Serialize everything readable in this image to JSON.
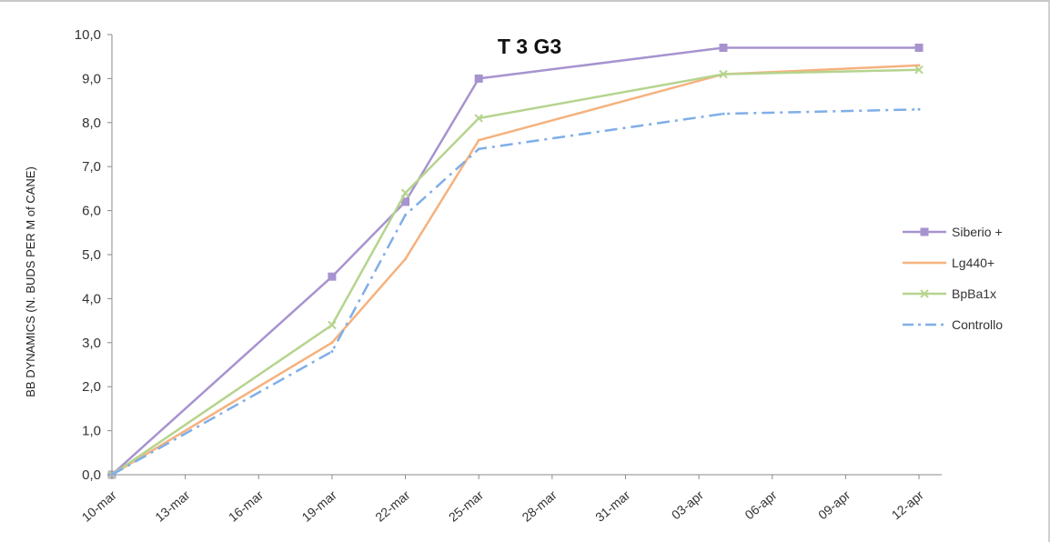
{
  "chart_data": {
    "type": "line",
    "title": "T 3 G3",
    "xlabel": "",
    "ylabel": "BB DYNAMICS (N. BUDS PER M of CANE)",
    "x_tick_labels": [
      "10-mar",
      "13-mar",
      "16-mar",
      "19-mar",
      "22-mar",
      "25-mar",
      "28-mar",
      "31-mar",
      "03-apr",
      "06-apr",
      "09-apr",
      "12-apr"
    ],
    "xlim": [
      "10-mar",
      "12-apr"
    ],
    "y_tick_labels": [
      "0,0",
      "1,0",
      "2,0",
      "3,0",
      "4,0",
      "5,0",
      "6,0",
      "7,0",
      "8,0",
      "9,0",
      "10,0"
    ],
    "ylim": [
      0,
      10
    ],
    "grid": false,
    "legend_position": "right",
    "series": [
      {
        "name": "Siberio +",
        "color": "#a793cf",
        "dash": "solid",
        "marker": "square",
        "x": [
          "10-mar",
          "19-mar",
          "22-mar",
          "25-mar",
          "04-apr",
          "12-apr"
        ],
        "y": [
          0.0,
          4.5,
          6.2,
          9.0,
          9.7,
          9.7
        ]
      },
      {
        "name": "Lg440+",
        "color": "#f5b27e",
        "dash": "solid",
        "marker": "none",
        "x": [
          "10-mar",
          "19-mar",
          "22-mar",
          "25-mar",
          "04-apr",
          "12-apr"
        ],
        "y": [
          0.0,
          3.0,
          4.9,
          7.6,
          9.1,
          9.3
        ]
      },
      {
        "name": "BpBa1x",
        "color": "#b5d48e",
        "dash": "solid",
        "marker": "x",
        "x": [
          "10-mar",
          "19-mar",
          "22-mar",
          "25-mar",
          "04-apr",
          "12-apr"
        ],
        "y": [
          0.0,
          3.4,
          6.4,
          8.1,
          9.1,
          9.2
        ]
      },
      {
        "name": "Controllo",
        "color": "#7faee8",
        "dash": "dashdot",
        "marker": "none",
        "x": [
          "10-mar",
          "19-mar",
          "22-mar",
          "25-mar",
          "04-apr",
          "12-apr"
        ],
        "y": [
          0.0,
          2.8,
          5.9,
          7.4,
          8.2,
          8.3
        ]
      }
    ]
  }
}
